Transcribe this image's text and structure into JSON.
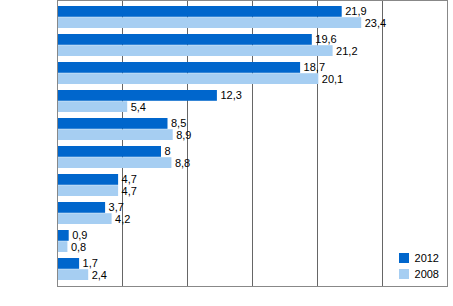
{
  "chart_data": {
    "type": "bar",
    "orientation": "horizontal",
    "categories": [
      null,
      null,
      null,
      null,
      null,
      null,
      null,
      null,
      null,
      null
    ],
    "series": [
      {
        "name": "2012",
        "color": "#0066cc",
        "values": [
          21.9,
          19.6,
          18.7,
          12.3,
          8.5,
          8,
          4.7,
          3.7,
          0.9,
          1.7
        ],
        "value_labels": [
          "21,9",
          "19,6",
          "18,7",
          "12,3",
          "8,5",
          "8",
          "4,7",
          "3,7",
          "0,9",
          "1,7"
        ]
      },
      {
        "name": "2008",
        "color": "#a6cef2",
        "values": [
          23.4,
          21.2,
          20.1,
          5.4,
          8.9,
          8.8,
          4.7,
          4.2,
          0.8,
          2.4
        ],
        "value_labels": [
          "23,4",
          "21,2",
          "20,1",
          "5,4",
          "8,9",
          "8,8",
          "4,7",
          "4,2",
          "0,8",
          "2,4"
        ]
      }
    ],
    "xlim": [
      0,
      30
    ],
    "xticks": [
      0,
      5,
      10,
      15,
      20,
      25,
      30
    ],
    "grid": true,
    "legend": "lower right",
    "data_labels": true,
    "tick_labels": false
  }
}
